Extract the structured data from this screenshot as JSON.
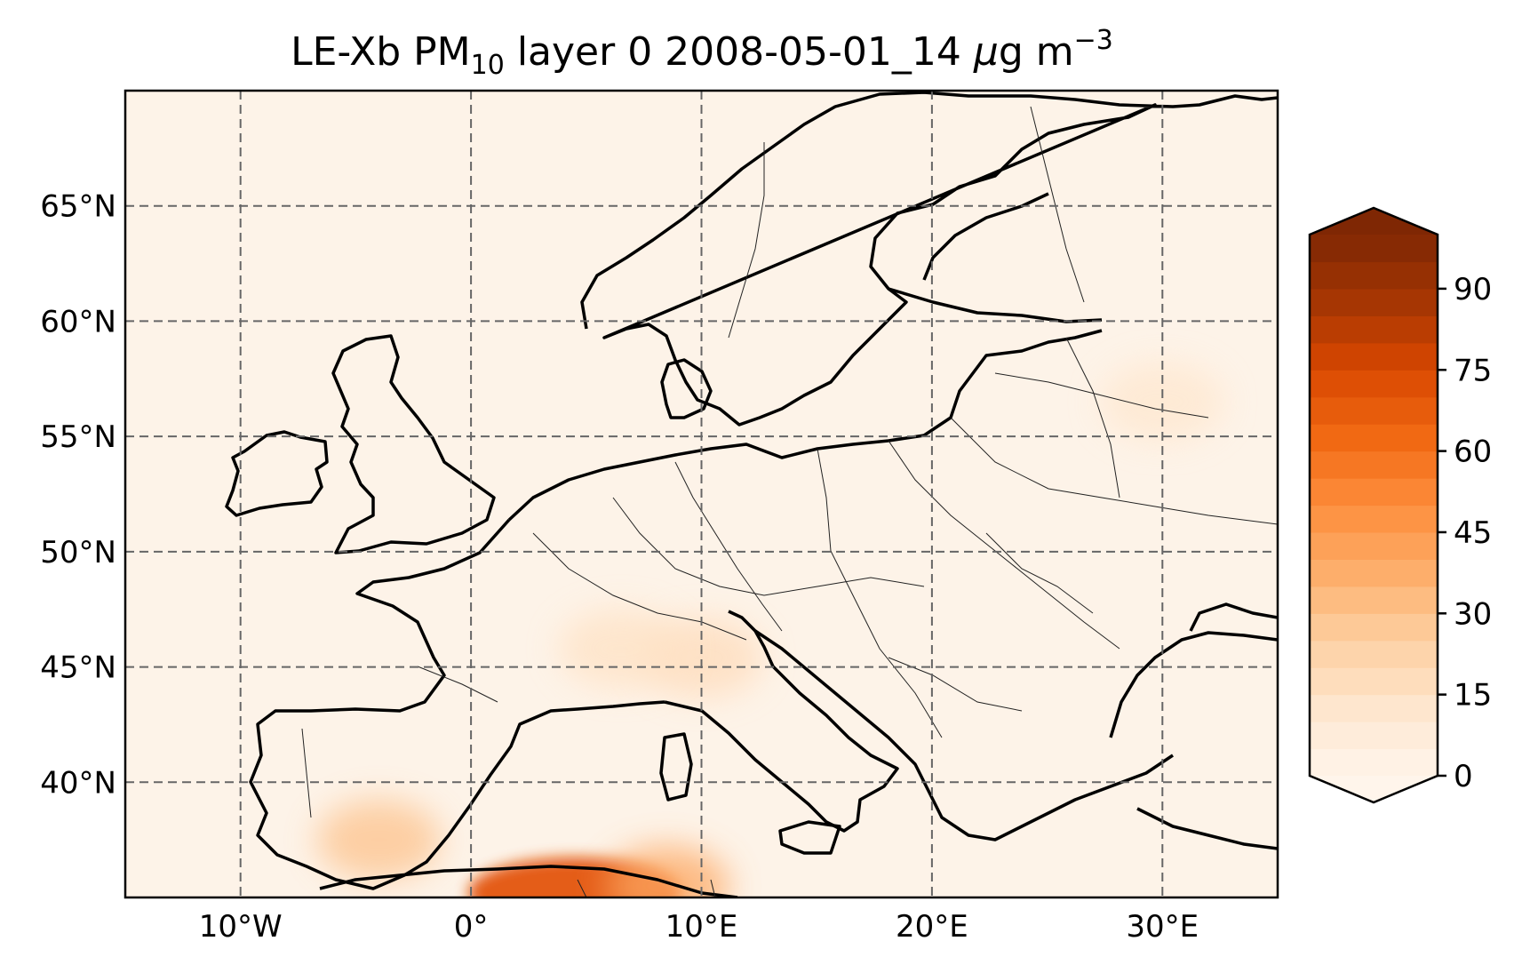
{
  "map": {
    "title": {
      "prefix": "LE-Xb PM",
      "subscript": "10",
      "middle": " layer 0 2008-05-01_14 ",
      "unit_mu": "μ",
      "unit_rest": "g m",
      "superscript": "−3"
    },
    "projection": "PlateCarree",
    "extent": {
      "lon": [
        -15,
        35
      ],
      "lat": [
        35,
        70
      ]
    },
    "lon_ticks": [
      {
        "value": -10,
        "label": "10°W"
      },
      {
        "value": 0,
        "label": "0°"
      },
      {
        "value": 10,
        "label": "10°E"
      },
      {
        "value": 20,
        "label": "20°E"
      },
      {
        "value": 30,
        "label": "30°E"
      }
    ],
    "lat_ticks": [
      {
        "value": 65,
        "label": "65°N"
      },
      {
        "value": 60,
        "label": "60°N"
      },
      {
        "value": 55,
        "label": "55°N"
      },
      {
        "value": 50,
        "label": "50°N"
      },
      {
        "value": 45,
        "label": "45°N"
      },
      {
        "value": 40,
        "label": "40°N"
      }
    ],
    "gridlines": true,
    "gridline_style": "dashed",
    "field_background_color": "#fdf3e8",
    "hotspots": [
      {
        "name": "north-africa-algeria",
        "lon": 4.5,
        "lat": 35.2,
        "value": 70
      },
      {
        "name": "north-africa-tunisia",
        "lon": 8.5,
        "lat": 35.5,
        "value": 40
      },
      {
        "name": "southern-spain",
        "lon": -4,
        "lat": 37.5,
        "value": 30
      },
      {
        "name": "po-valley",
        "lon": 10,
        "lat": 45.4,
        "value": 18
      },
      {
        "name": "rhone-valley",
        "lon": 6.5,
        "lat": 45.8,
        "value": 15
      },
      {
        "name": "eastern-baltic",
        "lon": 30,
        "lat": 56.5,
        "value": 12
      }
    ],
    "colorbar": {
      "colormap": "Oranges",
      "min": 0,
      "max": 100,
      "extend": "both",
      "levels_step": 5,
      "ticks": [
        {
          "value": 0,
          "label": "0"
        },
        {
          "value": 15,
          "label": "15"
        },
        {
          "value": 30,
          "label": "30"
        },
        {
          "value": 45,
          "label": "45"
        },
        {
          "value": 60,
          "label": "60"
        },
        {
          "value": 75,
          "label": "75"
        },
        {
          "value": 90,
          "label": "90"
        }
      ]
    }
  }
}
